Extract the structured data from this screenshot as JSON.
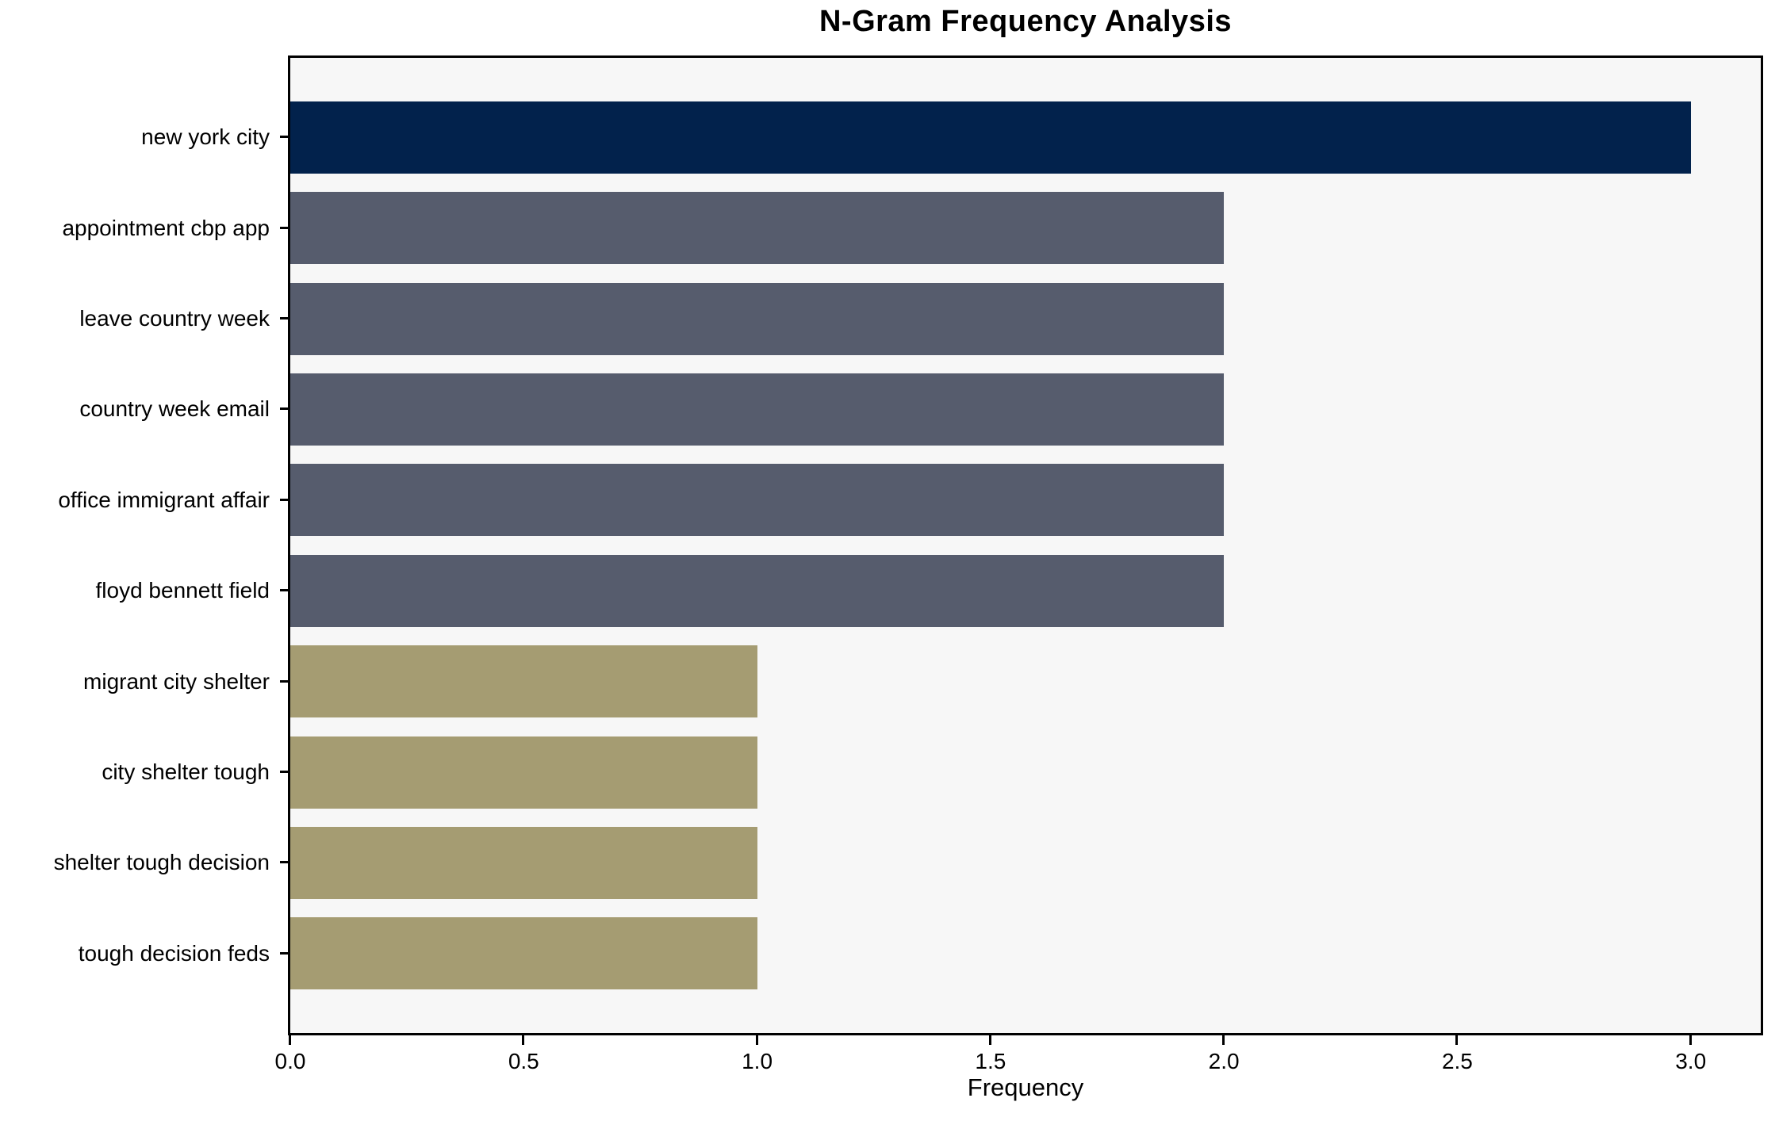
{
  "chart_data": {
    "type": "bar",
    "orientation": "horizontal",
    "title": "N-Gram Frequency Analysis",
    "xlabel": "Frequency",
    "ylabel": "",
    "categories": [
      "new york city",
      "appointment cbp app",
      "leave country week",
      "country week email",
      "office immigrant affair",
      "floyd bennett field",
      "migrant city shelter",
      "city shelter tough",
      "shelter tough decision",
      "tough decision feds"
    ],
    "values": [
      3,
      2,
      2,
      2,
      2,
      2,
      1,
      1,
      1,
      1
    ],
    "bar_colors": [
      "#02224c",
      "#565c6d",
      "#565c6d",
      "#565c6d",
      "#565c6d",
      "#565c6d",
      "#a59c72",
      "#a59c72",
      "#a59c72",
      "#a59c72"
    ],
    "xlim": [
      0,
      3.15
    ],
    "x_ticks": [
      0.0,
      0.5,
      1.0,
      1.5,
      2.0,
      2.5,
      3.0
    ],
    "x_tick_labels": [
      "0.0",
      "0.5",
      "1.0",
      "1.5",
      "2.0",
      "2.5",
      "3.0"
    ],
    "grid": false,
    "legend": "none"
  },
  "colors": {
    "figure_background": "#ffffff",
    "plot_background": "#f7f7f7",
    "spine": "#000000",
    "text": "#000000",
    "navy": "#02224c",
    "slate": "#565c6d",
    "khaki": "#a59c72"
  }
}
